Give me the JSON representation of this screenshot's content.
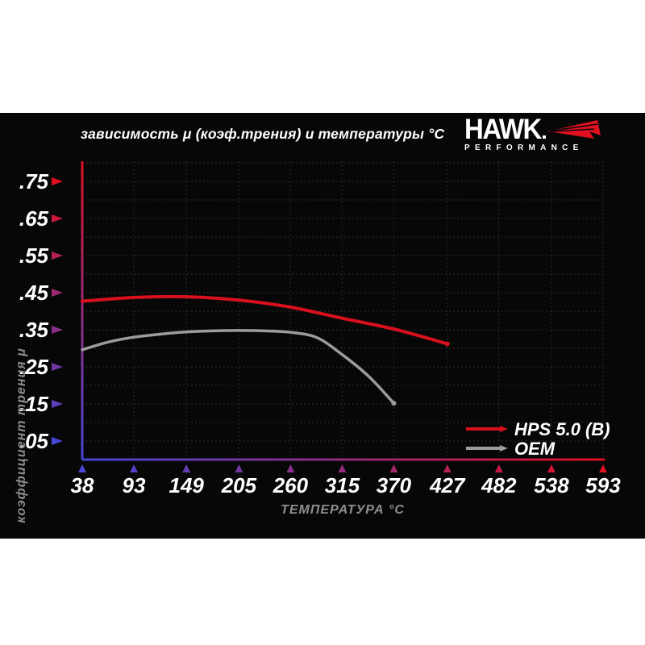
{
  "title": "зависимость μ (коэф.трения) и температуры °C",
  "logo": {
    "brand": "HAWK",
    "sub": "PERFORMANCE"
  },
  "colors": {
    "background_panel": "#070708",
    "page": "#ffffff",
    "axis_blue_end": "#4646d8",
    "axis_red_end": "#e01020",
    "grid": "#2f2f2f",
    "series_hps": "#d8101e",
    "series_oem": "#9c9c9c",
    "muted_text": "#8f8f8f"
  },
  "chart_data": {
    "type": "line",
    "title": "зависимость μ (коэф.трения) и температуры °C",
    "xlabel": "ТЕМПЕРАТУРА °C",
    "ylabel": "коэффициент трения μ",
    "xlim": [
      38,
      593
    ],
    "ylim": [
      0,
      0.8
    ],
    "grid": {
      "style": "dotted",
      "y_step": 0.05,
      "x": "at each temperature tick"
    },
    "legend_position": "lower right",
    "x_ticks": [
      38,
      93,
      149,
      205,
      260,
      315,
      370,
      427,
      482,
      538,
      593
    ],
    "y_tick_values": [
      0.05,
      0.15,
      0.25,
      0.35,
      0.45,
      0.55,
      0.65,
      0.75
    ],
    "y_tick_labels": [
      ".05",
      ".15",
      ".25",
      ".35",
      ".45",
      ".55",
      ".65",
      ".75"
    ],
    "series": [
      {
        "name": "HPS 5.0 (B)",
        "color": "#d8101e",
        "x": [
          38,
          93,
          149,
          205,
          260,
          315,
          370,
          427
        ],
        "y": [
          0.427,
          0.437,
          0.439,
          0.43,
          0.411,
          0.381,
          0.352,
          0.312
        ]
      },
      {
        "name": "OEM",
        "color": "#9c9c9c",
        "x": [
          38,
          66,
          93,
          121,
          149,
          177,
          205,
          232,
          260,
          288,
          315,
          343,
          370
        ],
        "y": [
          0.296,
          0.317,
          0.33,
          0.338,
          0.344,
          0.347,
          0.348,
          0.347,
          0.343,
          0.329,
          0.283,
          0.225,
          0.152
        ]
      }
    ]
  }
}
